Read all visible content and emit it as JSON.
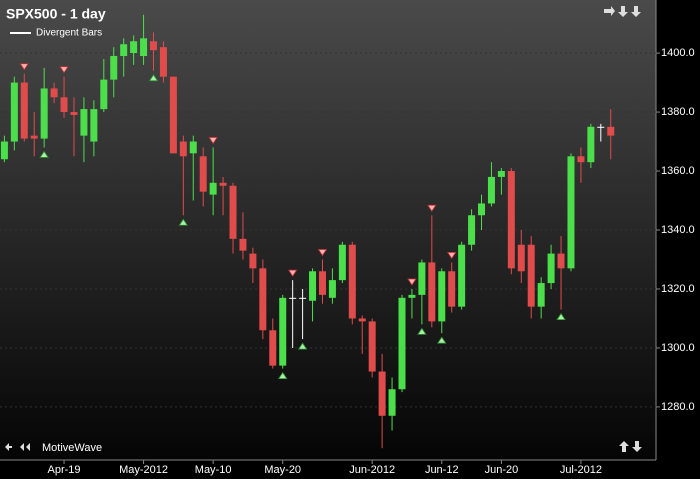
{
  "chart_data": {
    "type": "candlestick",
    "title": "SPX500 - 1 day",
    "study": "Divergent Bars",
    "brand": "MotiveWave",
    "categories": [
      null,
      null,
      null,
      null,
      null,
      null,
      "Apr-19",
      null,
      null,
      null,
      null,
      null,
      null,
      null,
      "May-2012",
      null,
      null,
      null,
      null,
      null,
      null,
      "May-10",
      null,
      null,
      null,
      null,
      null,
      null,
      "May-20",
      null,
      null,
      null,
      null,
      null,
      null,
      null,
      null,
      "Jun-2012",
      null,
      null,
      null,
      null,
      null,
      null,
      "Jun-12",
      null,
      null,
      null,
      null,
      null,
      "Jun-20",
      null,
      null,
      null,
      null,
      null,
      null,
      null,
      "Jul-2012",
      null,
      null,
      null
    ],
    "open": [
      1364,
      1370,
      1390,
      1372,
      1371,
      1388,
      1385,
      1380,
      1372,
      1370,
      1381,
      1391,
      1399,
      1400,
      1399,
      1404,
      1402,
      1392,
      1370,
      1366,
      1365,
      1352,
      1356,
      1355,
      1337,
      1332,
      1327,
      1306,
      1294,
      1317,
      1317,
      1316,
      1326,
      1317,
      1323,
      1335,
      1310,
      1309,
      1292,
      1277,
      1286,
      1317,
      1318,
      1329,
      1309,
      1326,
      1314,
      1335,
      1345,
      1349,
      1358,
      1360,
      1335,
      1335,
      1314,
      1322,
      1332,
      1327,
      1365,
      1363,
      1375,
      1375
    ],
    "high": [
      1372,
      1392,
      1393,
      1380,
      1395,
      1390,
      1392,
      1385,
      1385,
      1384,
      1398,
      1402,
      1405,
      1406,
      1413,
      1407,
      1404,
      1392,
      1372,
      1372,
      1368,
      1368,
      1358,
      1356,
      1346,
      1334,
      1330,
      1310,
      1318,
      1323,
      1320,
      1327,
      1330,
      1327,
      1336,
      1336,
      1311,
      1310,
      1298,
      1290,
      1318,
      1320,
      1330,
      1345,
      1327,
      1329,
      1336,
      1347,
      1352,
      1363,
      1361,
      1361,
      1340,
      1338,
      1324,
      1335,
      1338,
      1366,
      1368,
      1376,
      1376,
      1381
    ],
    "low": [
      1363,
      1367,
      1370,
      1365,
      1368,
      1383,
      1378,
      1365,
      1363,
      1365,
      1380,
      1385,
      1392,
      1396,
      1396,
      1394,
      1390,
      1366,
      1345,
      1350,
      1348,
      1345,
      1345,
      1332,
      1330,
      1322,
      1303,
      1293,
      1293,
      1300,
      1303,
      1309,
      1315,
      1315,
      1322,
      1308,
      1298,
      1290,
      1266,
      1272,
      1285,
      1310,
      1308,
      1307,
      1305,
      1312,
      1313,
      1333,
      1340,
      1348,
      1352,
      1325,
      1322,
      1310,
      1310,
      1320,
      1313,
      1326,
      1356,
      1361,
      1370,
      1364
    ],
    "close": [
      1370,
      1390,
      1371,
      1371,
      1388,
      1385,
      1380,
      1379,
      1381,
      1381,
      1391,
      1399,
      1403,
      1404,
      1405,
      1401,
      1392,
      1366,
      1365,
      1370,
      1353,
      1356,
      1355,
      1337,
      1333,
      1327,
      1306,
      1294,
      1317,
      1317,
      1317,
      1326,
      1318,
      1323,
      1335,
      1310,
      1309,
      1292,
      1277,
      1286,
      1317,
      1318,
      1329,
      1309,
      1326,
      1314,
      1335,
      1345,
      1349,
      1358,
      1360,
      1327,
      1326,
      1314,
      1322,
      1332,
      1327,
      1365,
      1363,
      1375,
      1375,
      1372
    ],
    "up_color": "#4be04b",
    "down_color": "#e04c4c",
    "flat_color": "#ffffff",
    "bearish_markers": [
      2,
      6,
      21,
      29,
      32,
      41,
      43,
      45
    ],
    "bullish_markers": [
      4,
      15,
      18,
      28,
      30,
      42,
      44,
      56
    ],
    "ylim": [
      1262,
      1418
    ],
    "yticks": [
      {
        "value": 1280,
        "label": "1280.0"
      },
      {
        "value": 1300,
        "label": "1300.0"
      },
      {
        "value": 1320,
        "label": "1320.0"
      },
      {
        "value": 1340,
        "label": "1340.0"
      },
      {
        "value": 1360,
        "label": "1360.0"
      },
      {
        "value": 1380,
        "label": "1380.0"
      },
      {
        "value": 1400,
        "label": "1400.0"
      }
    ],
    "grid": true
  }
}
